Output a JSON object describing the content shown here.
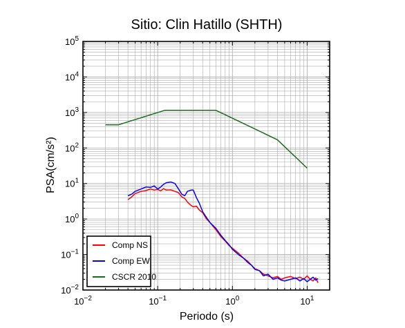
{
  "chart_data": {
    "type": "line",
    "title": "Sitio: Clin Hatillo (SHTH)",
    "xlabel": "Periodo (s)",
    "ylabel": "PSA(cm/s²)",
    "xscale": "log",
    "yscale": "log",
    "xlim": [
      0.01,
      20
    ],
    "ylim": [
      0.01,
      100000
    ],
    "x_ticks": [
      {
        "value": 0.01,
        "base": "10",
        "exp": "−2"
      },
      {
        "value": 0.1,
        "base": "10",
        "exp": "−1"
      },
      {
        "value": 1,
        "base": "10",
        "exp": "0"
      },
      {
        "value": 10,
        "base": "10",
        "exp": "1"
      }
    ],
    "y_ticks": [
      {
        "value": 0.01,
        "base": "10",
        "exp": "−2"
      },
      {
        "value": 0.1,
        "base": "10",
        "exp": "−1"
      },
      {
        "value": 1,
        "base": "10",
        "exp": "0"
      },
      {
        "value": 10,
        "base": "10",
        "exp": "1"
      },
      {
        "value": 100,
        "base": "10",
        "exp": "2"
      },
      {
        "value": 1000,
        "base": "10",
        "exp": "3"
      },
      {
        "value": 10000,
        "base": "10",
        "exp": "4"
      },
      {
        "value": 100000,
        "base": "10",
        "exp": "5"
      }
    ],
    "grid": true,
    "legend_position": "bottom-left",
    "series": [
      {
        "name": "Comp NS",
        "color": "#ff0000",
        "x": [
          0.04,
          0.045,
          0.05,
          0.055,
          0.06,
          0.07,
          0.08,
          0.09,
          0.1,
          0.11,
          0.12,
          0.13,
          0.15,
          0.17,
          0.19,
          0.21,
          0.23,
          0.25,
          0.28,
          0.3,
          0.33,
          0.36,
          0.4,
          0.45,
          0.5,
          0.6,
          0.7,
          0.8,
          0.9,
          1.0,
          1.2,
          1.4,
          1.6,
          1.8,
          2.0,
          2.3,
          2.6,
          3.0,
          3.5,
          4.0,
          4.5,
          5.0,
          6.0,
          7.0,
          8.0,
          9.0,
          10.0,
          11.0,
          12.0,
          13.0,
          14.0
        ],
        "y": [
          3.5,
          4.2,
          5.2,
          5.6,
          6.0,
          6.3,
          7.0,
          6.5,
          6.8,
          6.2,
          7.2,
          6.5,
          6.6,
          6.0,
          5.5,
          4.2,
          3.8,
          3.0,
          2.4,
          2.2,
          2.3,
          1.8,
          1.5,
          1.0,
          0.8,
          0.5,
          0.32,
          0.24,
          0.18,
          0.15,
          0.11,
          0.08,
          0.065,
          0.05,
          0.04,
          0.035,
          0.028,
          0.025,
          0.022,
          0.024,
          0.02,
          0.022,
          0.024,
          0.021,
          0.023,
          0.02,
          0.025,
          0.02,
          0.018,
          0.022,
          0.016
        ]
      },
      {
        "name": "Comp EW",
        "color": "#0000ff",
        "x": [
          0.04,
          0.045,
          0.05,
          0.055,
          0.06,
          0.07,
          0.08,
          0.09,
          0.1,
          0.11,
          0.12,
          0.13,
          0.15,
          0.17,
          0.19,
          0.21,
          0.23,
          0.25,
          0.28,
          0.3,
          0.33,
          0.36,
          0.4,
          0.45,
          0.5,
          0.6,
          0.7,
          0.8,
          0.9,
          1.0,
          1.2,
          1.4,
          1.6,
          1.8,
          2.0,
          2.3,
          2.6,
          3.0,
          3.5,
          4.0,
          4.5,
          5.0,
          6.0,
          7.0,
          8.0,
          9.0,
          10.0,
          11.0,
          12.0,
          13.0,
          14.0
        ],
        "y": [
          4.5,
          5.0,
          6.0,
          6.5,
          7.0,
          8.0,
          7.8,
          8.5,
          7.0,
          8.0,
          9.5,
          10.5,
          11.0,
          10.0,
          7.0,
          5.0,
          4.5,
          6.0,
          6.5,
          6.5,
          4.0,
          2.8,
          1.6,
          1.1,
          0.8,
          0.55,
          0.35,
          0.25,
          0.19,
          0.14,
          0.1,
          0.08,
          0.06,
          0.05,
          0.038,
          0.035,
          0.025,
          0.028,
          0.02,
          0.022,
          0.019,
          0.018,
          0.02,
          0.022,
          0.018,
          0.021,
          0.017,
          0.02,
          0.023,
          0.019,
          0.021
        ]
      },
      {
        "name": "CSCR 2010",
        "color": "#1a6b1a",
        "x": [
          0.02,
          0.03,
          0.125,
          0.6,
          4.0,
          10.0
        ],
        "y": [
          450,
          450,
          1150,
          1150,
          170,
          27
        ]
      }
    ]
  }
}
